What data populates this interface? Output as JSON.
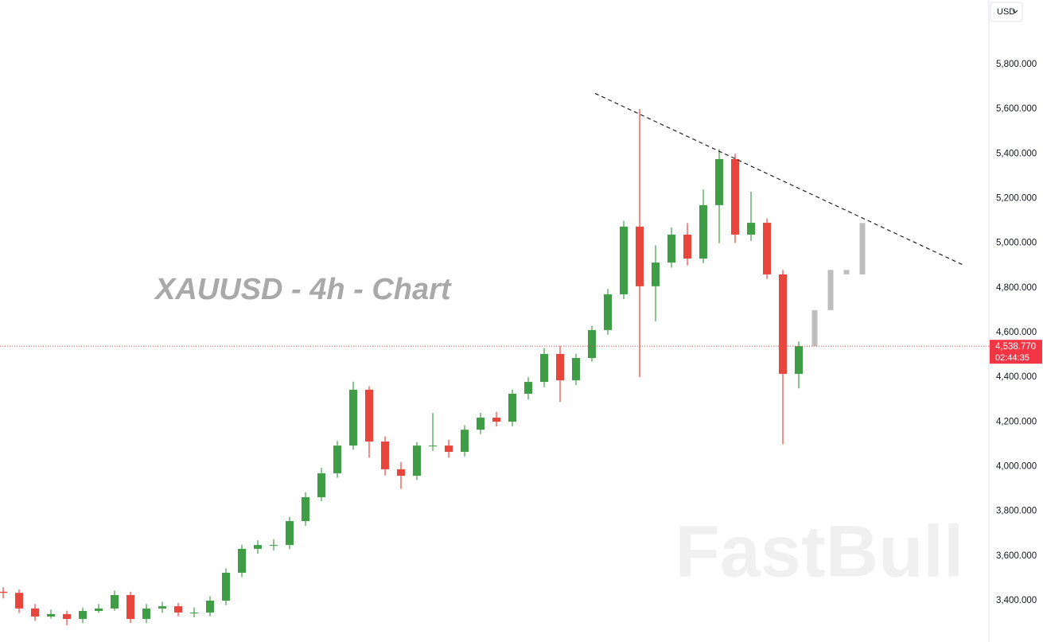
{
  "chart_data": {
    "type": "candlestick",
    "title": "XAUUSD - 4h - Chart",
    "watermark": "FastBull",
    "currency": "USD",
    "up_color": "#3f9e45",
    "down_color": "#e8453c",
    "open": [
      3440,
      3435,
      3365,
      3329,
      3340,
      3318,
      3354,
      3365,
      3425,
      3318,
      3365,
      3375,
      3347,
      3347,
      3400,
      3525,
      3632,
      3649,
      3649,
      3756,
      3863,
      3970,
      4094,
      4344,
      4112,
      3988,
      3959,
      4094,
      4094,
      4066,
      4165,
      4219,
      4201,
      4326,
      4379,
      4504,
      4386,
      4486,
      4611,
      4771,
      5074,
      4807,
      4913,
      5038,
      4931,
      5170,
      5376,
      5038,
      5091,
      4860,
      4415
    ],
    "high": [
      3460,
      3450,
      3385,
      3360,
      3355,
      3370,
      3385,
      3445,
      3440,
      3385,
      3395,
      3390,
      3370,
      3420,
      3545,
      3650,
      3670,
      3675,
      3775,
      3885,
      3995,
      4115,
      4380,
      4360,
      4135,
      4020,
      4110,
      4240,
      4120,
      4185,
      4240,
      4245,
      4345,
      4400,
      4530,
      4540,
      4505,
      4630,
      4795,
      5100,
      5600,
      4990,
      5070,
      5090,
      5240,
      5420,
      5400,
      5230,
      5110,
      4880,
      4560
    ],
    "low": [
      3410,
      3345,
      3310,
      3320,
      3290,
      3300,
      3345,
      3355,
      3300,
      3300,
      3345,
      3330,
      3325,
      3330,
      3380,
      3505,
      3610,
      3625,
      3630,
      3735,
      3845,
      3950,
      4075,
      4040,
      3960,
      3900,
      3940,
      4070,
      4040,
      4045,
      4145,
      4180,
      4180,
      4300,
      4355,
      4290,
      4365,
      4470,
      4590,
      4750,
      4400,
      4650,
      4890,
      4900,
      4910,
      5000,
      5000,
      5010,
      4840,
      4100,
      4350
    ],
    "close": [
      3435,
      3365,
      3329,
      3340,
      3318,
      3354,
      3365,
      3425,
      3318,
      3365,
      3375,
      3347,
      3347,
      3400,
      3525,
      3632,
      3649,
      3649,
      3756,
      3863,
      3970,
      4094,
      4344,
      4112,
      3988,
      3959,
      4094,
      4094,
      4066,
      4165,
      4219,
      4201,
      4326,
      4379,
      4504,
      4386,
      4486,
      4611,
      4771,
      5074,
      4807,
      4913,
      5038,
      4931,
      5170,
      5376,
      5038,
      5091,
      4860,
      4415,
      4538.77
    ],
    "projection": {
      "color": "#bdbdbd",
      "x": [
        51,
        52,
        53,
        54
      ],
      "close": [
        4700,
        4880,
        4860,
        5090
      ]
    },
    "trendline": {
      "x": [
        37.2,
        60.4
      ],
      "y": [
        5670,
        4900
      ]
    },
    "last_price": {
      "value": 4538.77,
      "label": "4,538.770"
    },
    "countdown": "02:44:35",
    "xlim": [
      -0.2,
      61.95
    ],
    "ylim": [
      3215,
      6088
    ],
    "yticks": [
      {
        "value": 3400,
        "label": "3,400.000"
      },
      {
        "value": 3600,
        "label": "3,600.000"
      },
      {
        "value": 3800,
        "label": "3,800.000"
      },
      {
        "value": 4000,
        "label": "4,000.000"
      },
      {
        "value": 4200,
        "label": "4,200.000"
      },
      {
        "value": 4400,
        "label": "4,400.000"
      },
      {
        "value": 4600,
        "label": "4,600.000"
      },
      {
        "value": 4800,
        "label": "4,800.000"
      },
      {
        "value": 5000,
        "label": "5,000.000"
      },
      {
        "value": 5200,
        "label": "5,200.000"
      },
      {
        "value": 5400,
        "label": "5,400.000"
      },
      {
        "value": 5600,
        "label": "5,600.000"
      },
      {
        "value": 5800,
        "label": "5,800.000"
      }
    ],
    "grid": false
  }
}
